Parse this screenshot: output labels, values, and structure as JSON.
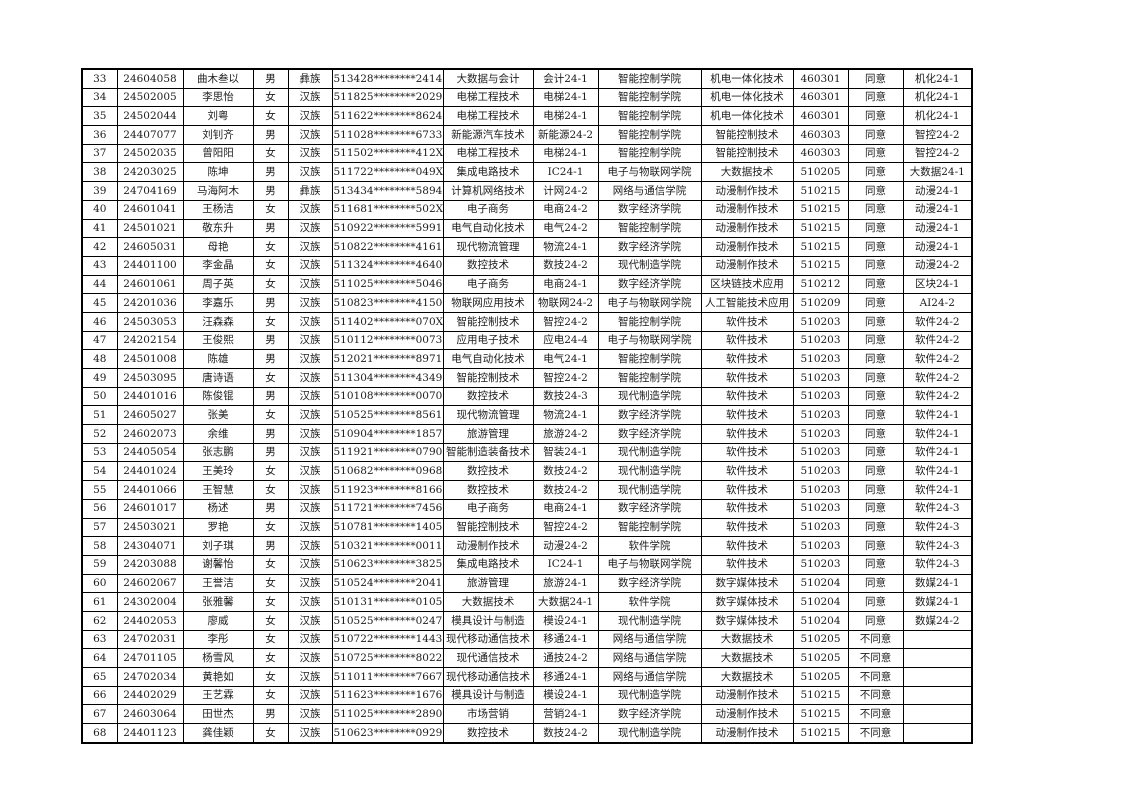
{
  "table": {
    "rows": [
      [
        "33",
        "24604058",
        "曲木叁以",
        "男",
        "彝族",
        "513428********2414",
        "大数据与会计",
        "会计24-1",
        "智能控制学院",
        "机电一体化技术",
        "460301",
        "同意",
        "机化24-1"
      ],
      [
        "34",
        "24502005",
        "李思怡",
        "女",
        "汉族",
        "511825********2029",
        "电梯工程技术",
        "电梯24-1",
        "智能控制学院",
        "机电一体化技术",
        "460301",
        "同意",
        "机化24-1"
      ],
      [
        "35",
        "24502044",
        "刘粤",
        "女",
        "汉族",
        "511622********8624",
        "电梯工程技术",
        "电梯24-1",
        "智能控制学院",
        "机电一体化技术",
        "460301",
        "同意",
        "机化24-1"
      ],
      [
        "36",
        "24407077",
        "刘钊齐",
        "男",
        "汉族",
        "511028********6733",
        "新能源汽车技术",
        "新能源24-2",
        "智能控制学院",
        "智能控制技术",
        "460303",
        "同意",
        "智控24-2"
      ],
      [
        "37",
        "24502035",
        "曾阳阳",
        "女",
        "汉族",
        "511502********412X",
        "电梯工程技术",
        "电梯24-1",
        "智能控制学院",
        "智能控制技术",
        "460303",
        "同意",
        "智控24-2"
      ],
      [
        "38",
        "24203025",
        "陈坤",
        "男",
        "汉族",
        "511722********049X",
        "集成电路技术",
        "IC24-1",
        "电子与物联网学院",
        "大数据技术",
        "510205",
        "同意",
        "大数据24-1"
      ],
      [
        "39",
        "24704169",
        "马海阿木",
        "男",
        "彝族",
        "513434********5894",
        "计算机网络技术",
        "计网24-2",
        "网络与通信学院",
        "动漫制作技术",
        "510215",
        "同意",
        "动漫24-1"
      ],
      [
        "40",
        "24601041",
        "王杨洁",
        "女",
        "汉族",
        "511681********502X",
        "电子商务",
        "电商24-2",
        "数字经济学院",
        "动漫制作技术",
        "510215",
        "同意",
        "动漫24-1"
      ],
      [
        "41",
        "24501021",
        "敬东升",
        "男",
        "汉族",
        "510922********5991",
        "电气自动化技术",
        "电气24-2",
        "智能控制学院",
        "动漫制作技术",
        "510215",
        "同意",
        "动漫24-1"
      ],
      [
        "42",
        "24605031",
        "母艳",
        "女",
        "汉族",
        "510822********4161",
        "现代物流管理",
        "物流24-1",
        "数字经济学院",
        "动漫制作技术",
        "510215",
        "同意",
        "动漫24-1"
      ],
      [
        "43",
        "24401100",
        "李金晶",
        "女",
        "汉族",
        "511324********4640",
        "数控技术",
        "数技24-2",
        "现代制造学院",
        "动漫制作技术",
        "510215",
        "同意",
        "动漫24-2"
      ],
      [
        "44",
        "24601061",
        "周子英",
        "女",
        "汉族",
        "511025********5046",
        "电子商务",
        "电商24-1",
        "数字经济学院",
        "区块链技术应用",
        "510212",
        "同意",
        "区块24-1"
      ],
      [
        "45",
        "24201036",
        "李嘉乐",
        "男",
        "汉族",
        "510823********4150",
        "物联网应用技术",
        "物联网24-2",
        "电子与物联网学院",
        "人工智能技术应用",
        "510209",
        "同意",
        "AI24-2"
      ],
      [
        "46",
        "24503053",
        "汪森森",
        "女",
        "汉族",
        "511402********070X",
        "智能控制技术",
        "智控24-2",
        "智能控制学院",
        "软件技术",
        "510203",
        "同意",
        "软件24-2"
      ],
      [
        "47",
        "24202154",
        "王俊熙",
        "男",
        "汉族",
        "510112********0073",
        "应用电子技术",
        "应电24-4",
        "电子与物联网学院",
        "软件技术",
        "510203",
        "同意",
        "软件24-2"
      ],
      [
        "48",
        "24501008",
        "陈雄",
        "男",
        "汉族",
        "512021********8971",
        "电气自动化技术",
        "电气24-1",
        "智能控制学院",
        "软件技术",
        "510203",
        "同意",
        "软件24-2"
      ],
      [
        "49",
        "24503095",
        "唐诗语",
        "女",
        "汉族",
        "511304********4349",
        "智能控制技术",
        "智控24-2",
        "智能控制学院",
        "软件技术",
        "510203",
        "同意",
        "软件24-2"
      ],
      [
        "50",
        "24401016",
        "陈俊锟",
        "男",
        "汉族",
        "510108********0070",
        "数控技术",
        "数技24-3",
        "现代制造学院",
        "软件技术",
        "510203",
        "同意",
        "软件24-2"
      ],
      [
        "51",
        "24605027",
        "张美",
        "女",
        "汉族",
        "510525********8561",
        "现代物流管理",
        "物流24-1",
        "数字经济学院",
        "软件技术",
        "510203",
        "同意",
        "软件24-1"
      ],
      [
        "52",
        "24602073",
        "余维",
        "男",
        "汉族",
        "510904********1857",
        "旅游管理",
        "旅游24-2",
        "数字经济学院",
        "软件技术",
        "510203",
        "同意",
        "软件24-1"
      ],
      [
        "53",
        "24405054",
        "张志鹏",
        "男",
        "汉族",
        "511921********0790",
        "智能制造装备技术",
        "智装24-1",
        "现代制造学院",
        "软件技术",
        "510203",
        "同意",
        "软件24-1"
      ],
      [
        "54",
        "24401024",
        "王美玲",
        "女",
        "汉族",
        "510682********0968",
        "数控技术",
        "数技24-2",
        "现代制造学院",
        "软件技术",
        "510203",
        "同意",
        "软件24-1"
      ],
      [
        "55",
        "24401066",
        "王智慧",
        "女",
        "汉族",
        "511923********8166",
        "数控技术",
        "数技24-2",
        "现代制造学院",
        "软件技术",
        "510203",
        "同意",
        "软件24-1"
      ],
      [
        "56",
        "24601017",
        "杨述",
        "男",
        "汉族",
        "511721********7456",
        "电子商务",
        "电商24-1",
        "数字经济学院",
        "软件技术",
        "510203",
        "同意",
        "软件24-3"
      ],
      [
        "57",
        "24503021",
        "罗艳",
        "女",
        "汉族",
        "510781********1405",
        "智能控制技术",
        "智控24-2",
        "智能控制学院",
        "软件技术",
        "510203",
        "同意",
        "软件24-3"
      ],
      [
        "58",
        "24304071",
        "刘子琪",
        "男",
        "汉族",
        "510321********0011",
        "动漫制作技术",
        "动漫24-2",
        "软件学院",
        "软件技术",
        "510203",
        "同意",
        "软件24-3"
      ],
      [
        "59",
        "24203088",
        "谢馨怡",
        "女",
        "汉族",
        "510623********3825",
        "集成电路技术",
        "IC24-1",
        "电子与物联网学院",
        "软件技术",
        "510203",
        "同意",
        "软件24-3"
      ],
      [
        "60",
        "24602067",
        "王誉洁",
        "女",
        "汉族",
        "510524********2041",
        "旅游管理",
        "旅游24-1",
        "数字经济学院",
        "数字媒体技术",
        "510204",
        "同意",
        "数媒24-1"
      ],
      [
        "61",
        "24302004",
        "张雅馨",
        "女",
        "汉族",
        "510131********0105",
        "大数据技术",
        "大数据24-1",
        "软件学院",
        "数字媒体技术",
        "510204",
        "同意",
        "数媒24-1"
      ],
      [
        "62",
        "24402053",
        "廖威",
        "女",
        "汉族",
        "510525********0247",
        "模具设计与制造",
        "模设24-1",
        "现代制造学院",
        "数字媒体技术",
        "510204",
        "同意",
        "数媒24-2"
      ],
      [
        "63",
        "24702031",
        "李彤",
        "女",
        "汉族",
        "510722********1443",
        "现代移动通信技术",
        "移通24-1",
        "网络与通信学院",
        "大数据技术",
        "510205",
        "不同意",
        ""
      ],
      [
        "64",
        "24701105",
        "杨雪风",
        "女",
        "汉族",
        "510725********8022",
        "现代通信技术",
        "通技24-2",
        "网络与通信学院",
        "大数据技术",
        "510205",
        "不同意",
        ""
      ],
      [
        "65",
        "24702034",
        "黄艳如",
        "女",
        "汉族",
        "511011********7667",
        "现代移动通信技术",
        "移通24-1",
        "网络与通信学院",
        "大数据技术",
        "510205",
        "不同意",
        ""
      ],
      [
        "66",
        "24402029",
        "王艺霖",
        "女",
        "汉族",
        "511623********1676",
        "模具设计与制造",
        "模设24-1",
        "现代制造学院",
        "动漫制作技术",
        "510215",
        "不同意",
        ""
      ],
      [
        "67",
        "24603064",
        "田世杰",
        "男",
        "汉族",
        "511025********2890",
        "市场营销",
        "营销24-1",
        "数字经济学院",
        "动漫制作技术",
        "510215",
        "不同意",
        ""
      ],
      [
        "68",
        "24401123",
        "龚佳颖",
        "女",
        "汉族",
        "510623********0929",
        "数控技术",
        "数技24-2",
        "现代制造学院",
        "动漫制作技术",
        "510215",
        "不同意",
        ""
      ]
    ]
  }
}
